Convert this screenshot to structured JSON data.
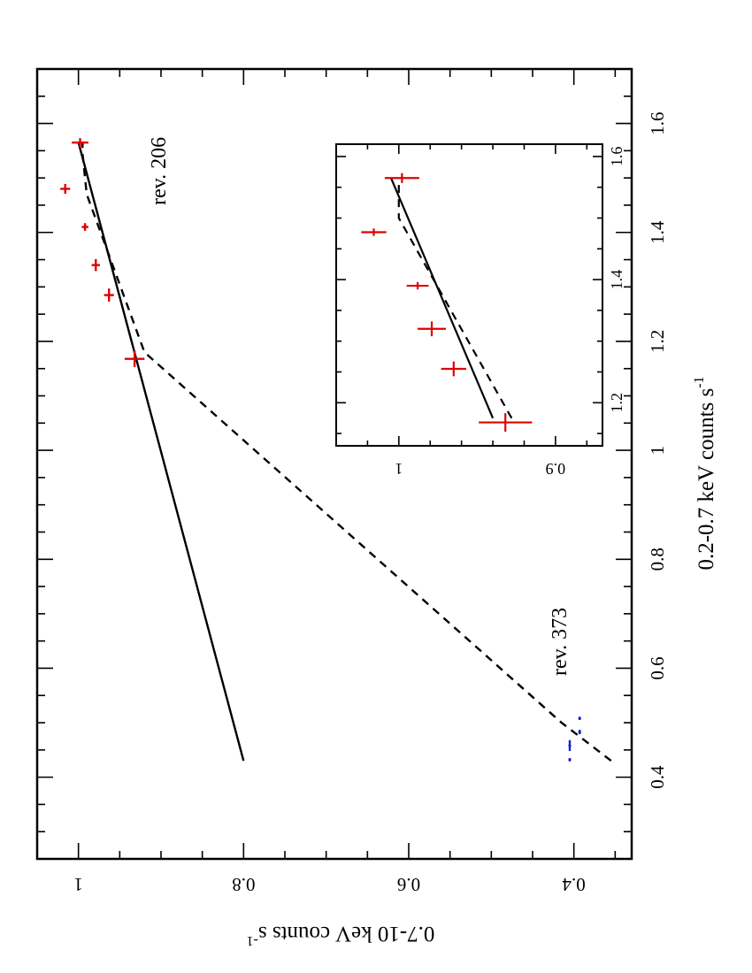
{
  "chart_data": [
    {
      "type": "scatter",
      "xlabel": "0.2-0.7 keV counts s",
      "xlabel_exponent": "-1",
      "ylabel": "0.7-10 keV counts s",
      "ylabel_exponent": "-1",
      "xlim": [
        0.25,
        1.7
      ],
      "ylim": [
        0.33,
        1.05
      ],
      "xticks": [
        "0.4",
        "0.6",
        "0.8",
        "1",
        "1.2",
        "1.4",
        "1.6"
      ],
      "yticks": [
        "0.4",
        "0.6",
        "0.8",
        "1"
      ],
      "annotations": [
        "rev. 206",
        "rev. 373"
      ],
      "colors": {
        "rev206": "#e00000",
        "rev373": "#1020d0",
        "lines": "#000000"
      },
      "series": [
        {
          "points": [
            {
              "x": 1.168,
              "xerr": 0.015,
              "y": 0.932,
              "yerr": 0.012
            },
            {
              "x": 1.285,
              "xerr": 0.012,
              "y": 0.963,
              "yerr": 0.006
            },
            {
              "x": 1.34,
              "xerr": 0.011,
              "y": 0.979,
              "yerr": 0.005
            },
            {
              "x": 1.41,
              "xerr": 0.007,
              "y": 0.992,
              "yerr": 0.004
            },
            {
              "x": 1.48,
              "xerr": 0.009,
              "y": 1.016,
              "yerr": 0.006
            },
            {
              "x": 1.565,
              "xerr": 0.008,
              "y": 0.998,
              "yerr": 0.01
            }
          ]
        },
        {
          "points": [
            {
              "x": 0.432,
              "xerr": 0.003,
              "y": 0.405,
              "yerr": 0.0
            },
            {
              "x": 0.458,
              "xerr": 0.01,
              "y": 0.405,
              "yerr": 0.0
            },
            {
              "x": 0.483,
              "xerr": 0.004,
              "y": 0.393,
              "yerr": 0.0
            },
            {
              "x": 0.508,
              "xerr": 0.003,
              "y": 0.393,
              "yerr": 0.0
            }
          ]
        }
      ],
      "fit_lines": [
        {
          "style": "solid",
          "points": [
            [
              0.43,
              0.8
            ],
            [
              1.565,
              1.0
            ]
          ]
        },
        {
          "style": "dashed",
          "points": [
            [
              0.43,
              0.355
            ],
            [
              0.5,
              0.415
            ],
            [
              1.18,
              0.92
            ],
            [
              1.47,
              0.99
            ],
            [
              1.545,
              0.995
            ],
            [
              1.565,
              0.995
            ]
          ]
        }
      ]
    },
    {
      "type": "scatter",
      "inset": true,
      "xlim": [
        1.13,
        1.62
      ],
      "ylim": [
        0.87,
        1.04
      ],
      "xticks": [
        "1.2",
        "1.4",
        "1.6"
      ],
      "yticks": [
        "0.9",
        "1"
      ],
      "series": [
        {
          "points": [
            {
              "x": 1.168,
              "xerr": 0.015,
              "y": 0.932,
              "yerr": 0.017
            },
            {
              "x": 1.255,
              "xerr": 0.012,
              "y": 0.965,
              "yerr": 0.008
            },
            {
              "x": 1.32,
              "xerr": 0.012,
              "y": 0.979,
              "yerr": 0.009
            },
            {
              "x": 1.39,
              "xerr": 0.006,
              "y": 0.988,
              "yerr": 0.007
            },
            {
              "x": 1.477,
              "xerr": 0.006,
              "y": 1.016,
              "yerr": 0.008
            },
            {
              "x": 1.565,
              "xerr": 0.008,
              "y": 0.998,
              "yerr": 0.011
            }
          ]
        }
      ],
      "fit_lines": [
        {
          "style": "solid",
          "points": [
            [
              1.175,
              0.94
            ],
            [
              1.565,
              1.005
            ]
          ]
        },
        {
          "style": "dashed",
          "points": [
            [
              1.175,
              0.928
            ],
            [
              1.5,
              1.0
            ],
            [
              1.565,
              1.0
            ]
          ]
        }
      ]
    }
  ]
}
